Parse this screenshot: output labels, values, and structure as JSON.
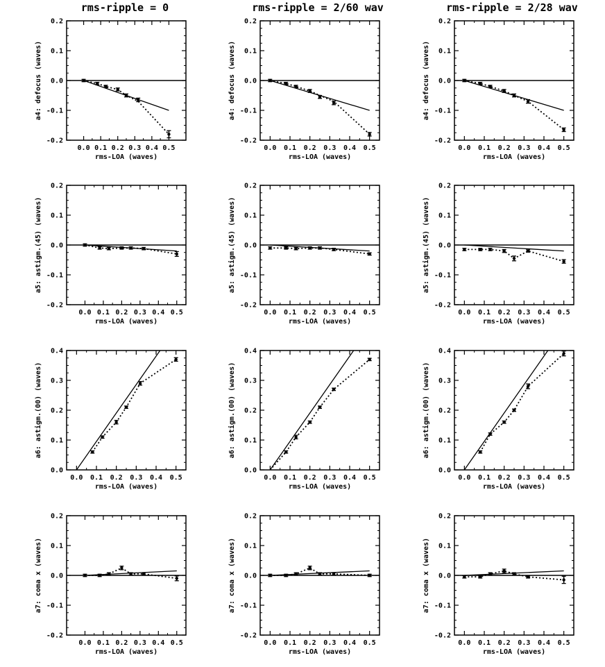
{
  "column_titles": [
    "rms-ripple = 0",
    "rms-ripple = 2/60 wav",
    "rms-ripple = 2/28 wav"
  ],
  "chart_data": [
    {
      "type": "line",
      "panel": "r0c0",
      "xlabel": "rms-LOA (waves)",
      "ylabel": "a4: defocus (waves)",
      "xlim": [
        -0.1,
        0.6
      ],
      "ylim": [
        -0.2,
        0.2
      ],
      "xticks": [
        "0.0",
        "0.1",
        "0.2",
        "0.3",
        "0.4",
        "0.5"
      ],
      "yticks": [
        "-0.2",
        "-0.1",
        "0.0",
        "0.1",
        "0.2"
      ],
      "series": [
        {
          "style": "solid",
          "x": [
            0,
            0.5
          ],
          "y": [
            0,
            -0.1
          ]
        },
        {
          "style": "dotted",
          "x": [
            0,
            0.08,
            0.13,
            0.2,
            0.25,
            0.32,
            0.5
          ],
          "y": [
            0,
            -0.01,
            -0.02,
            -0.03,
            -0.05,
            -0.07,
            -0.18
          ]
        }
      ],
      "points": {
        "x": [
          0,
          0.08,
          0.13,
          0.2,
          0.25,
          0.32,
          0.5
        ],
        "y": [
          0,
          -0.01,
          -0.02,
          -0.03,
          -0.05,
          -0.065,
          -0.18
        ],
        "err": [
          0.004,
          0.004,
          0.004,
          0.005,
          0.005,
          0.006,
          0.012
        ]
      }
    },
    {
      "type": "line",
      "panel": "r0c1",
      "xlabel": "rms-LOA (waves)",
      "ylabel": "a4: defocus (waves)",
      "xlim": [
        -0.05,
        0.55
      ],
      "ylim": [
        -0.2,
        0.2
      ],
      "xticks": [
        "0.0",
        "0.1",
        "0.2",
        "0.3",
        "0.4",
        "0.5"
      ],
      "yticks": [
        "-0.2",
        "-0.1",
        "0.0",
        "0.1",
        "0.2"
      ],
      "series": [
        {
          "style": "solid",
          "x": [
            0,
            0.5
          ],
          "y": [
            0,
            -0.1
          ]
        },
        {
          "style": "dotted",
          "x": [
            0,
            0.08,
            0.13,
            0.2,
            0.25,
            0.32,
            0.5
          ],
          "y": [
            0,
            -0.01,
            -0.02,
            -0.035,
            -0.05,
            -0.07,
            -0.18
          ]
        }
      ],
      "points": {
        "x": [
          0,
          0.08,
          0.13,
          0.2,
          0.25,
          0.32,
          0.5
        ],
        "y": [
          0,
          -0.01,
          -0.02,
          -0.035,
          -0.055,
          -0.075,
          -0.18
        ],
        "err": [
          0.004,
          0.004,
          0.004,
          0.005,
          0.005,
          0.006,
          0.006
        ]
      }
    },
    {
      "type": "line",
      "panel": "r0c2",
      "xlabel": "rms-LOA (waves)",
      "ylabel": "a4: defocus (waves)",
      "xlim": [
        -0.05,
        0.55
      ],
      "ylim": [
        -0.2,
        0.2
      ],
      "xticks": [
        "0.0",
        "0.1",
        "0.2",
        "0.3",
        "0.4",
        "0.5"
      ],
      "yticks": [
        "-0.2",
        "-0.1",
        "0.0",
        "0.1",
        "0.2"
      ],
      "series": [
        {
          "style": "solid",
          "x": [
            0,
            0.5
          ],
          "y": [
            0,
            -0.1
          ]
        },
        {
          "style": "dotted",
          "x": [
            0,
            0.08,
            0.13,
            0.2,
            0.25,
            0.32,
            0.5
          ],
          "y": [
            0,
            -0.01,
            -0.02,
            -0.035,
            -0.05,
            -0.07,
            -0.165
          ]
        }
      ],
      "points": {
        "x": [
          0,
          0.08,
          0.13,
          0.2,
          0.25,
          0.32,
          0.5
        ],
        "y": [
          0,
          -0.01,
          -0.02,
          -0.035,
          -0.05,
          -0.07,
          -0.165
        ],
        "err": [
          0.004,
          0.004,
          0.004,
          0.005,
          0.005,
          0.006,
          0.006
        ]
      }
    },
    {
      "type": "line",
      "panel": "r1c0",
      "xlabel": "rms-LOA (waves)",
      "ylabel": "a5: astigm.(45) (waves)",
      "xlim": [
        -0.1,
        0.55
      ],
      "ylim": [
        -0.2,
        0.2
      ],
      "xticks": [
        "0.0",
        "0.1",
        "0.2",
        "0.3",
        "0.4",
        "0.5"
      ],
      "yticks": [
        "-0.2",
        "-0.1",
        "0.0",
        "0.1",
        "0.2"
      ],
      "series": [
        {
          "style": "solid",
          "x": [
            0,
            0.5
          ],
          "y": [
            0,
            -0.02
          ]
        },
        {
          "style": "dotted",
          "x": [
            0,
            0.08,
            0.13,
            0.2,
            0.25,
            0.32,
            0.5
          ],
          "y": [
            0,
            -0.01,
            -0.012,
            -0.01,
            -0.01,
            -0.012,
            -0.03
          ]
        }
      ],
      "points": {
        "x": [
          0,
          0.08,
          0.13,
          0.2,
          0.25,
          0.32,
          0.5
        ],
        "y": [
          0,
          -0.01,
          -0.012,
          -0.01,
          -0.01,
          -0.012,
          -0.03
        ],
        "err": [
          0.004,
          0.004,
          0.004,
          0.004,
          0.004,
          0.004,
          0.008
        ]
      }
    },
    {
      "type": "line",
      "panel": "r1c1",
      "xlabel": "rms-LOA (waves)",
      "ylabel": "a5: astigm.(45) (waves)",
      "xlim": [
        -0.05,
        0.55
      ],
      "ylim": [
        -0.2,
        0.2
      ],
      "xticks": [
        "0.0",
        "0.1",
        "0.2",
        "0.3",
        "0.4",
        "0.5"
      ],
      "yticks": [
        "-0.2",
        "-0.1",
        "0.0",
        "0.1",
        "0.2"
      ],
      "series": [
        {
          "style": "solid",
          "x": [
            0,
            0.5
          ],
          "y": [
            0,
            -0.02
          ]
        },
        {
          "style": "dotted",
          "x": [
            0,
            0.08,
            0.13,
            0.2,
            0.25,
            0.32,
            0.5
          ],
          "y": [
            -0.01,
            -0.01,
            -0.012,
            -0.01,
            -0.01,
            -0.015,
            -0.03
          ]
        }
      ],
      "points": {
        "x": [
          0,
          0.08,
          0.13,
          0.2,
          0.25,
          0.32,
          0.5
        ],
        "y": [
          -0.01,
          -0.01,
          -0.012,
          -0.01,
          -0.01,
          -0.015,
          -0.03
        ],
        "err": [
          0.004,
          0.004,
          0.004,
          0.004,
          0.004,
          0.004,
          0.004
        ]
      }
    },
    {
      "type": "line",
      "panel": "r1c2",
      "xlabel": "rms-LOA (waves)",
      "ylabel": "a5: astigm.(45) (waves)",
      "xlim": [
        -0.05,
        0.55
      ],
      "ylim": [
        -0.2,
        0.2
      ],
      "xticks": [
        "0.0",
        "0.1",
        "0.2",
        "0.3",
        "0.4",
        "0.5"
      ],
      "yticks": [
        "-0.2",
        "-0.1",
        "0.0",
        "0.1",
        "0.2"
      ],
      "series": [
        {
          "style": "solid",
          "x": [
            0,
            0.5
          ],
          "y": [
            0,
            -0.02
          ]
        },
        {
          "style": "dotted",
          "x": [
            0,
            0.08,
            0.13,
            0.2,
            0.25,
            0.32,
            0.5
          ],
          "y": [
            -0.015,
            -0.015,
            -0.015,
            -0.02,
            -0.045,
            -0.02,
            -0.055
          ]
        }
      ],
      "points": {
        "x": [
          0,
          0.08,
          0.13,
          0.2,
          0.25,
          0.32,
          0.5
        ],
        "y": [
          -0.015,
          -0.015,
          -0.015,
          -0.02,
          -0.045,
          -0.02,
          -0.055
        ],
        "err": [
          0.004,
          0.004,
          0.004,
          0.005,
          0.008,
          0.004,
          0.006
        ]
      }
    },
    {
      "type": "line",
      "panel": "r2c0",
      "xlabel": "rms-LOA (waves)",
      "ylabel": "a6: astigm.(00) (waves)",
      "xlim": [
        -0.05,
        0.55
      ],
      "ylim": [
        0.0,
        0.4
      ],
      "xticks": [
        "0.0",
        "0.1",
        "0.2",
        "0.3",
        "0.4",
        "0.5"
      ],
      "yticks": [
        "0.0",
        "0.1",
        "0.2",
        "0.3",
        "0.4"
      ],
      "series": [
        {
          "style": "solid",
          "x": [
            0,
            0.42
          ],
          "y": [
            0,
            0.4
          ]
        },
        {
          "style": "dotted",
          "x": [
            0.08,
            0.13,
            0.2,
            0.25,
            0.32,
            0.5
          ],
          "y": [
            0.06,
            0.11,
            0.16,
            0.21,
            0.29,
            0.37
          ]
        }
      ],
      "points": {
        "x": [
          0.08,
          0.13,
          0.2,
          0.25,
          0.32,
          0.5
        ],
        "y": [
          0.06,
          0.11,
          0.16,
          0.21,
          0.29,
          0.37
        ],
        "err": [
          0.004,
          0.004,
          0.006,
          0.004,
          0.006,
          0.006
        ]
      }
    },
    {
      "type": "line",
      "panel": "r2c1",
      "xlabel": "rms-LOA (waves)",
      "ylabel": "a6: astigm.(00) (waves)",
      "xlim": [
        -0.05,
        0.55
      ],
      "ylim": [
        0.0,
        0.4
      ],
      "xticks": [
        "0.0",
        "0.1",
        "0.2",
        "0.3",
        "0.4",
        "0.5"
      ],
      "yticks": [
        "0.0",
        "0.1",
        "0.2",
        "0.3",
        "0.4"
      ],
      "series": [
        {
          "style": "solid",
          "x": [
            0,
            0.42
          ],
          "y": [
            0,
            0.4
          ]
        },
        {
          "style": "dotted",
          "x": [
            0,
            0.08,
            0.13,
            0.2,
            0.25,
            0.32,
            0.5
          ],
          "y": [
            0,
            0.06,
            0.11,
            0.16,
            0.21,
            0.27,
            0.37
          ]
        }
      ],
      "points": {
        "x": [
          0.08,
          0.13,
          0.2,
          0.25,
          0.32,
          0.5
        ],
        "y": [
          0.06,
          0.11,
          0.16,
          0.21,
          0.27,
          0.37
        ],
        "err": [
          0.004,
          0.006,
          0.004,
          0.004,
          0.004,
          0.004
        ]
      }
    },
    {
      "type": "line",
      "panel": "r2c2",
      "xlabel": "rms-LOA (waves)",
      "ylabel": "a6: astigm.(00) (waves)",
      "xlim": [
        -0.05,
        0.55
      ],
      "ylim": [
        0.0,
        0.4
      ],
      "xticks": [
        "0.0",
        "0.1",
        "0.2",
        "0.3",
        "0.4",
        "0.5"
      ],
      "yticks": [
        "0.0",
        "0.1",
        "0.2",
        "0.3",
        "0.4"
      ],
      "series": [
        {
          "style": "solid",
          "x": [
            0,
            0.42
          ],
          "y": [
            0,
            0.4
          ]
        },
        {
          "style": "dotted",
          "x": [
            0.08,
            0.13,
            0.2,
            0.25,
            0.32,
            0.5
          ],
          "y": [
            0.06,
            0.12,
            0.16,
            0.2,
            0.28,
            0.39
          ]
        }
      ],
      "points": {
        "x": [
          0.08,
          0.13,
          0.2,
          0.25,
          0.32,
          0.5
        ],
        "y": [
          0.06,
          0.12,
          0.16,
          0.2,
          0.28,
          0.39
        ],
        "err": [
          0.004,
          0.004,
          0.004,
          0.004,
          0.008,
          0.008
        ]
      }
    },
    {
      "type": "line",
      "panel": "r3c0",
      "xlabel": "rms-LOA (waves)",
      "ylabel": "a7: coma x (waves)",
      "xlim": [
        -0.1,
        0.55
      ],
      "ylim": [
        -0.2,
        0.2
      ],
      "xticks": [
        "0.0",
        "0.1",
        "0.2",
        "0.3",
        "0.4",
        "0.5"
      ],
      "yticks": [
        "-0.2",
        "-0.1",
        "0.0",
        "0.1",
        "0.2"
      ],
      "series": [
        {
          "style": "solid",
          "x": [
            0,
            0.5
          ],
          "y": [
            0,
            0.015
          ]
        },
        {
          "style": "dotted",
          "x": [
            0,
            0.08,
            0.13,
            0.2,
            0.25,
            0.32,
            0.5
          ],
          "y": [
            0,
            0,
            0.005,
            0.025,
            0.005,
            0.005,
            -0.01
          ]
        }
      ],
      "points": {
        "x": [
          0,
          0.08,
          0.13,
          0.2,
          0.25,
          0.32,
          0.5
        ],
        "y": [
          0,
          0,
          0.005,
          0.025,
          0.005,
          0.005,
          -0.01
        ],
        "err": [
          0.004,
          0.004,
          0.004,
          0.006,
          0.004,
          0.004,
          0.008
        ]
      }
    },
    {
      "type": "line",
      "panel": "r3c1",
      "xlabel": "rms-LOA (waves)",
      "ylabel": "a7: coma x (waves)",
      "xlim": [
        -0.05,
        0.55
      ],
      "ylim": [
        -0.2,
        0.2
      ],
      "xticks": [
        "0.0",
        "0.1",
        "0.2",
        "0.3",
        "0.4",
        "0.5"
      ],
      "yticks": [
        "-0.2",
        "-0.1",
        "0.0",
        "0.1",
        "0.2"
      ],
      "series": [
        {
          "style": "solid",
          "x": [
            0,
            0.5
          ],
          "y": [
            0,
            0.015
          ]
        },
        {
          "style": "dotted",
          "x": [
            0,
            0.08,
            0.13,
            0.2,
            0.25,
            0.32,
            0.5
          ],
          "y": [
            0,
            0,
            0.005,
            0.025,
            0.005,
            0.005,
            0
          ]
        }
      ],
      "points": {
        "x": [
          0,
          0.08,
          0.13,
          0.2,
          0.25,
          0.32,
          0.5
        ],
        "y": [
          0,
          0,
          0.005,
          0.025,
          0.005,
          0.005,
          0
        ],
        "err": [
          0.004,
          0.004,
          0.004,
          0.006,
          0.004,
          0.004,
          0.004
        ]
      }
    },
    {
      "type": "line",
      "panel": "r3c2",
      "xlabel": "rms-LOA (waves)",
      "ylabel": "a7: coma x (waves)",
      "xlim": [
        -0.05,
        0.55
      ],
      "ylim": [
        -0.2,
        0.2
      ],
      "xticks": [
        "0.0",
        "0.1",
        "0.2",
        "0.3",
        "0.4",
        "0.5"
      ],
      "yticks": [
        "-0.2",
        "-0.1",
        "0.0",
        "0.1",
        "0.2"
      ],
      "series": [
        {
          "style": "solid",
          "x": [
            0,
            0.5
          ],
          "y": [
            0,
            0.015
          ]
        },
        {
          "style": "dotted",
          "x": [
            0,
            0.08,
            0.13,
            0.2,
            0.25,
            0.32,
            0.5
          ],
          "y": [
            -0.005,
            -0.005,
            0.005,
            0.015,
            0.005,
            -0.005,
            -0.015
          ]
        }
      ],
      "points": {
        "x": [
          0,
          0.08,
          0.13,
          0.2,
          0.25,
          0.32,
          0.5
        ],
        "y": [
          -0.005,
          -0.005,
          0.005,
          0.015,
          0.005,
          -0.005,
          -0.015
        ],
        "err": [
          0.004,
          0.004,
          0.004,
          0.006,
          0.004,
          0.004,
          0.012
        ]
      }
    }
  ]
}
